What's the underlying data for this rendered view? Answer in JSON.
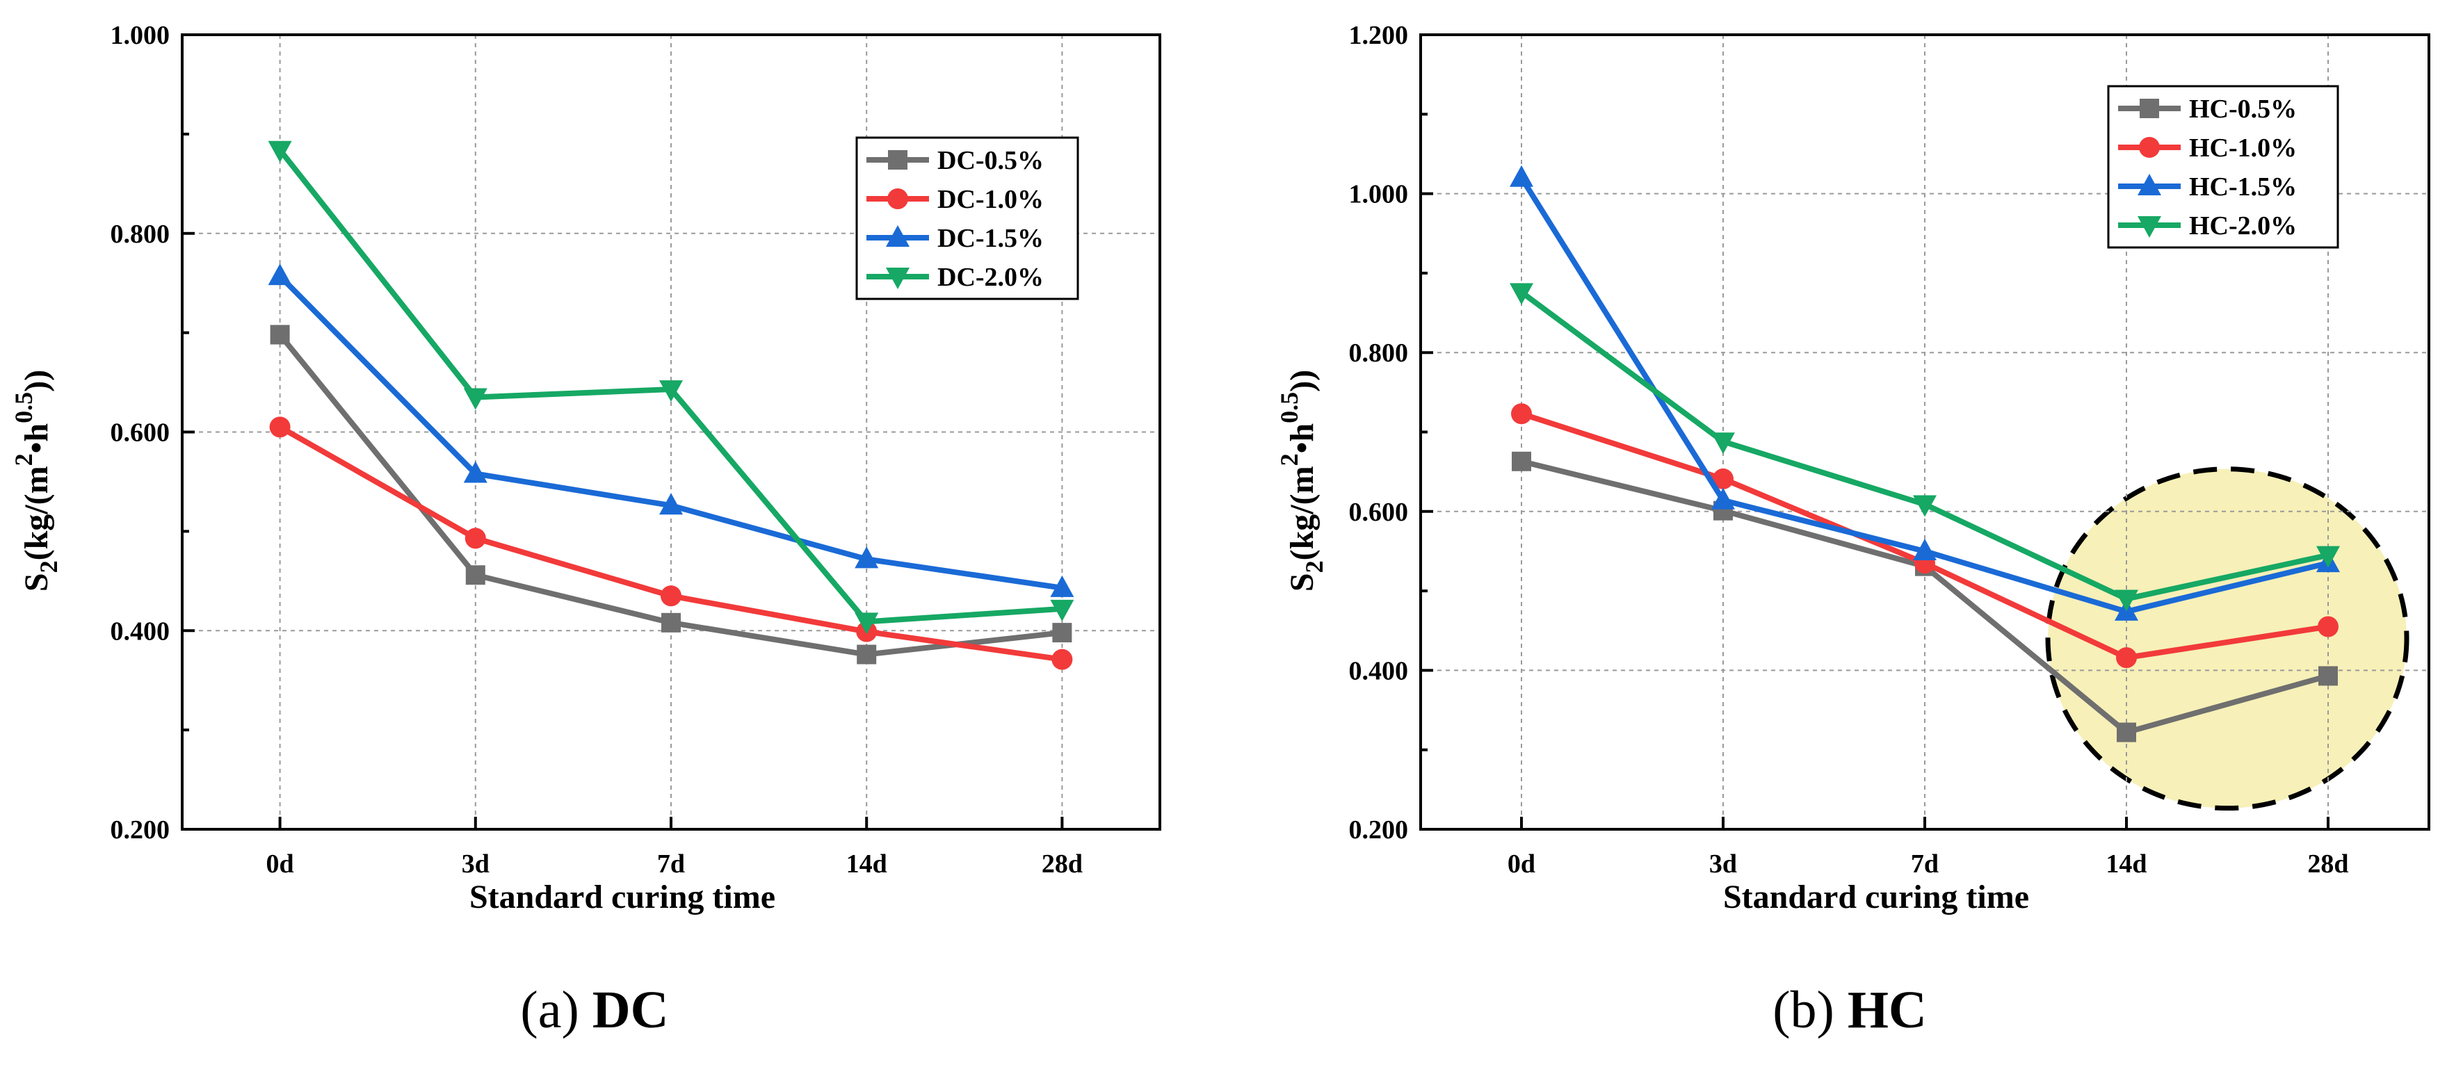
{
  "chart_data": [
    {
      "type": "line",
      "caption": {
        "prefix": "(a)",
        "label": "DC"
      },
      "xlabel": "Standard curing time",
      "ylabel": {
        "base": "S",
        "sub": "2",
        "part1": "(kg/(m",
        "sup1": "2",
        "dot": "•h",
        "sup2": "0.5",
        "part2": "))"
      },
      "categories": [
        "0d",
        "3d",
        "7d",
        "14d",
        "28d"
      ],
      "yticks": [
        "0.200",
        "0.400",
        "0.600",
        "0.800",
        "1.000"
      ],
      "ylim": [
        0.2,
        1.0
      ],
      "grid": true,
      "legend_position": "top-right",
      "series": [
        {
          "name": "DC-0.5%",
          "color": "#6f6f6f",
          "marker": "square",
          "values": [
            0.698,
            0.456,
            0.408,
            0.376,
            0.398
          ]
        },
        {
          "name": "DC-1.0%",
          "color": "#f23a3a",
          "marker": "circle",
          "values": [
            0.605,
            0.493,
            0.435,
            0.399,
            0.371
          ]
        },
        {
          "name": "DC-1.5%",
          "color": "#1a6ad6",
          "marker": "triangle-up",
          "values": [
            0.757,
            0.558,
            0.526,
            0.472,
            0.443
          ]
        },
        {
          "name": "DC-2.0%",
          "color": "#16a864",
          "marker": "triangle-down",
          "values": [
            0.884,
            0.635,
            0.643,
            0.409,
            0.422
          ]
        }
      ]
    },
    {
      "type": "line",
      "caption": {
        "prefix": "(b)",
        "label": "HC"
      },
      "xlabel": "Standard curing time",
      "ylabel": {
        "base": "S",
        "sub": "2",
        "part1": "(kg/(m",
        "sup1": "2",
        "dot": "•h",
        "sup2": "0.5",
        "part2": "))"
      },
      "categories": [
        "0d",
        "3d",
        "7d",
        "14d",
        "28d"
      ],
      "yticks": [
        "0.200",
        "0.400",
        "0.600",
        "0.800",
        "1.000",
        "1.200"
      ],
      "ylim": [
        0.2,
        1.2
      ],
      "grid": true,
      "legend_position": "top-right",
      "highlight": {
        "center_x": 3.5,
        "center_y": 0.44,
        "fill": "#f7f0b8"
      },
      "series": [
        {
          "name": "HC-0.5%",
          "color": "#6f6f6f",
          "marker": "square",
          "values": [
            0.663,
            0.601,
            0.531,
            0.322,
            0.393
          ]
        },
        {
          "name": "HC-1.0%",
          "color": "#f23a3a",
          "marker": "circle",
          "values": [
            0.723,
            0.641,
            0.535,
            0.416,
            0.455
          ]
        },
        {
          "name": "HC-1.5%",
          "color": "#1a6ad6",
          "marker": "triangle-up",
          "values": [
            1.02,
            0.614,
            0.55,
            0.474,
            0.535
          ]
        },
        {
          "name": "HC-2.0%",
          "color": "#16a864",
          "marker": "triangle-down",
          "values": [
            0.876,
            0.688,
            0.609,
            0.49,
            0.545
          ]
        }
      ]
    }
  ]
}
